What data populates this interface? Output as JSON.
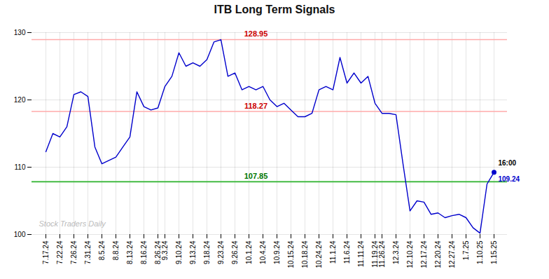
{
  "chart_data": {
    "type": "line",
    "title": "ITB Long Term Signals",
    "categories": [
      "7.17.24",
      null,
      "7.22.24",
      null,
      "7.26.24",
      null,
      "7.31.24",
      null,
      "8.5.24",
      null,
      "8.8.24",
      null,
      "8.13.24",
      null,
      "8.16.24",
      null,
      "8.26.24",
      "9.3.24",
      null,
      "9.10.24",
      null,
      "9.13.24",
      null,
      "9.18.24",
      null,
      "9.23.24",
      null,
      "9.26.24",
      null,
      "10.1.24",
      null,
      "10.4.24",
      null,
      "10.9.24",
      null,
      "10.15.24",
      null,
      "10.18.24",
      null,
      "10.24.24",
      null,
      "11.1.24",
      null,
      "11.6.24",
      null,
      "11.11.24",
      null,
      "11.19.24",
      "11.26.24",
      null,
      "12.3.24",
      null,
      "12.10.24",
      null,
      "12.17.24",
      null,
      "12.20.24",
      null,
      "12.27.24",
      null,
      "1.7.25",
      null,
      "1.10.25",
      null,
      "1.15.25"
    ],
    "values": [
      112.3,
      115.0,
      114.5,
      116.0,
      120.8,
      121.2,
      120.5,
      113.0,
      110.5,
      111.0,
      111.5,
      113.0,
      114.5,
      121.2,
      119.0,
      118.5,
      118.8,
      122.0,
      123.5,
      127.0,
      125.0,
      125.5,
      125.0,
      126.0,
      128.6,
      128.95,
      123.5,
      124.0,
      121.5,
      122.0,
      121.5,
      122.0,
      120.0,
      119.0,
      119.5,
      118.5,
      117.5,
      117.5,
      118.0,
      121.5,
      122.0,
      121.5,
      126.3,
      122.5,
      124.0,
      122.5,
      123.5,
      119.5,
      118.0,
      118.0,
      117.8,
      110.5,
      103.5,
      105.0,
      104.8,
      103.0,
      103.2,
      102.5,
      102.8,
      103.0,
      102.5,
      101.0,
      100.2,
      107.5,
      109.24
    ],
    "color": "#0000cc",
    "ylim": [
      100,
      130
    ],
    "yticks": [
      100,
      110,
      120,
      130
    ],
    "grid": true,
    "reference_lines": [
      {
        "value": 128.95,
        "color": "#ffaaaa",
        "label_color": "#cc0000"
      },
      {
        "value": 118.27,
        "color": "#ffaaaa",
        "label_color": "#cc0000"
      },
      {
        "value": 107.85,
        "color": "#44bb44",
        "label_color": "#007700"
      }
    ],
    "last_point": {
      "label": "16:00",
      "value_label": "109.24",
      "color": "#0000cc"
    },
    "watermark": {
      "text": "Stock Traders Daily",
      "color": "#bbbbbb"
    }
  }
}
